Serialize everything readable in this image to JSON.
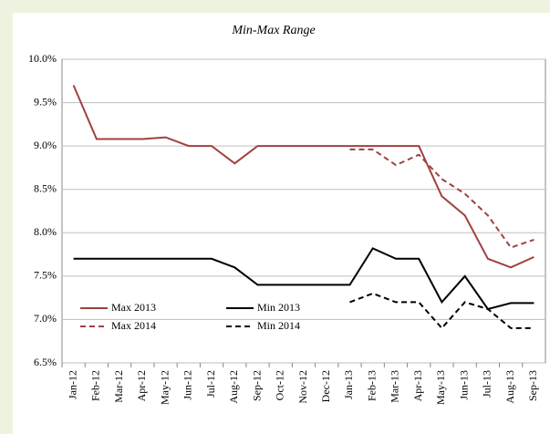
{
  "chart_data": {
    "type": "line",
    "subtitle": "Min-Max Range",
    "categories": [
      "Jan-12",
      "Feb-12",
      "Mar-12",
      "Apr-12",
      "May-12",
      "Jun-12",
      "Jul-12",
      "Aug-12",
      "Sep-12",
      "Oct-12",
      "Nov-12",
      "Dec-12",
      "Jan-13",
      "Feb-13",
      "Mar-13",
      "Apr-13",
      "May-13",
      "Jun-13",
      "Jul-13",
      "Aug-13",
      "Sep-13"
    ],
    "series": [
      {
        "name": "Max 2013",
        "color": "#a0403f",
        "dash": false,
        "values": [
          9.7,
          9.08,
          9.08,
          9.08,
          9.1,
          9.0,
          9.0,
          8.8,
          9.0,
          9.0,
          9.0,
          9.0,
          9.0,
          9.0,
          9.0,
          9.0,
          8.42,
          8.2,
          7.7,
          7.6,
          7.72
        ]
      },
      {
        "name": "Min 2013",
        "color": "#000000",
        "dash": false,
        "values": [
          7.7,
          7.7,
          7.7,
          7.7,
          7.7,
          7.7,
          7.7,
          7.6,
          7.4,
          7.4,
          7.4,
          7.4,
          7.4,
          7.82,
          7.7,
          7.7,
          7.2,
          7.5,
          7.12,
          7.19,
          7.19
        ]
      },
      {
        "name": "Max 2014",
        "color": "#a0403f",
        "dash": true,
        "values": [
          null,
          null,
          null,
          null,
          null,
          null,
          null,
          null,
          null,
          null,
          null,
          null,
          8.96,
          8.96,
          8.78,
          8.9,
          8.62,
          8.45,
          8.2,
          7.83,
          7.92
        ]
      },
      {
        "name": "Min 2014",
        "color": "#000000",
        "dash": true,
        "values": [
          null,
          null,
          null,
          null,
          null,
          null,
          null,
          null,
          null,
          null,
          null,
          null,
          7.2,
          7.3,
          7.2,
          7.2,
          6.9,
          7.2,
          7.12,
          6.9,
          6.9
        ]
      }
    ],
    "ylim": [
      6.5,
      10.0
    ],
    "yticks": [
      {
        "value": 6.5,
        "label": "6.5%"
      },
      {
        "value": 7.0,
        "label": "7.0%"
      },
      {
        "value": 7.5,
        "label": "7.5%"
      },
      {
        "value": 8.0,
        "label": "8.0%"
      },
      {
        "value": 8.5,
        "label": "8.5%"
      },
      {
        "value": 9.0,
        "label": "9.0%"
      },
      {
        "value": 9.5,
        "label": "9.5%"
      },
      {
        "value": 10.0,
        "label": "10.0%"
      }
    ],
    "grid": true,
    "legend": "lower left"
  }
}
